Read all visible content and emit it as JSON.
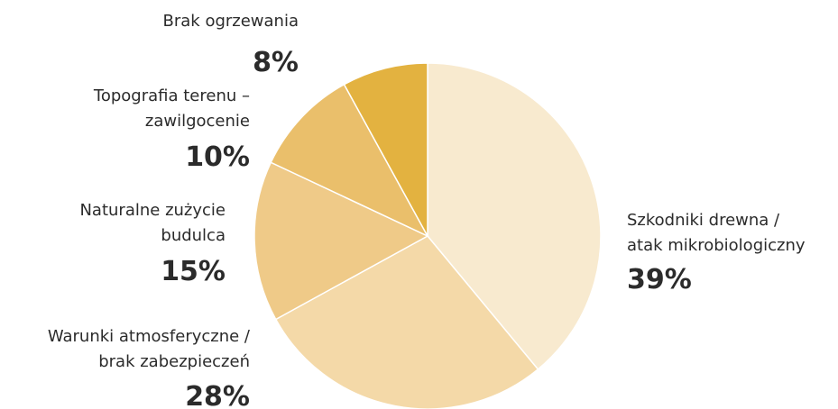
{
  "chart_data": {
    "type": "pie",
    "labels": [
      [
        "Szkodniki drewna /",
        "atak mikrobiologiczny"
      ],
      [
        "Warunki atmosferyczne /",
        "brak zabezpieczeń"
      ],
      [
        "Naturalne zużycie",
        "budulca"
      ],
      [
        "Topografia terenu –",
        "zawilgocenie"
      ],
      [
        "Brak ogrzewania"
      ]
    ],
    "values": [
      39,
      28,
      15,
      10,
      8
    ],
    "value_labels": [
      "39%",
      "28%",
      "15%",
      "10%",
      "8%"
    ],
    "colors": [
      "#f8eacf",
      "#f4d9a8",
      "#efca88",
      "#eabf6b",
      "#e3b240"
    ]
  }
}
